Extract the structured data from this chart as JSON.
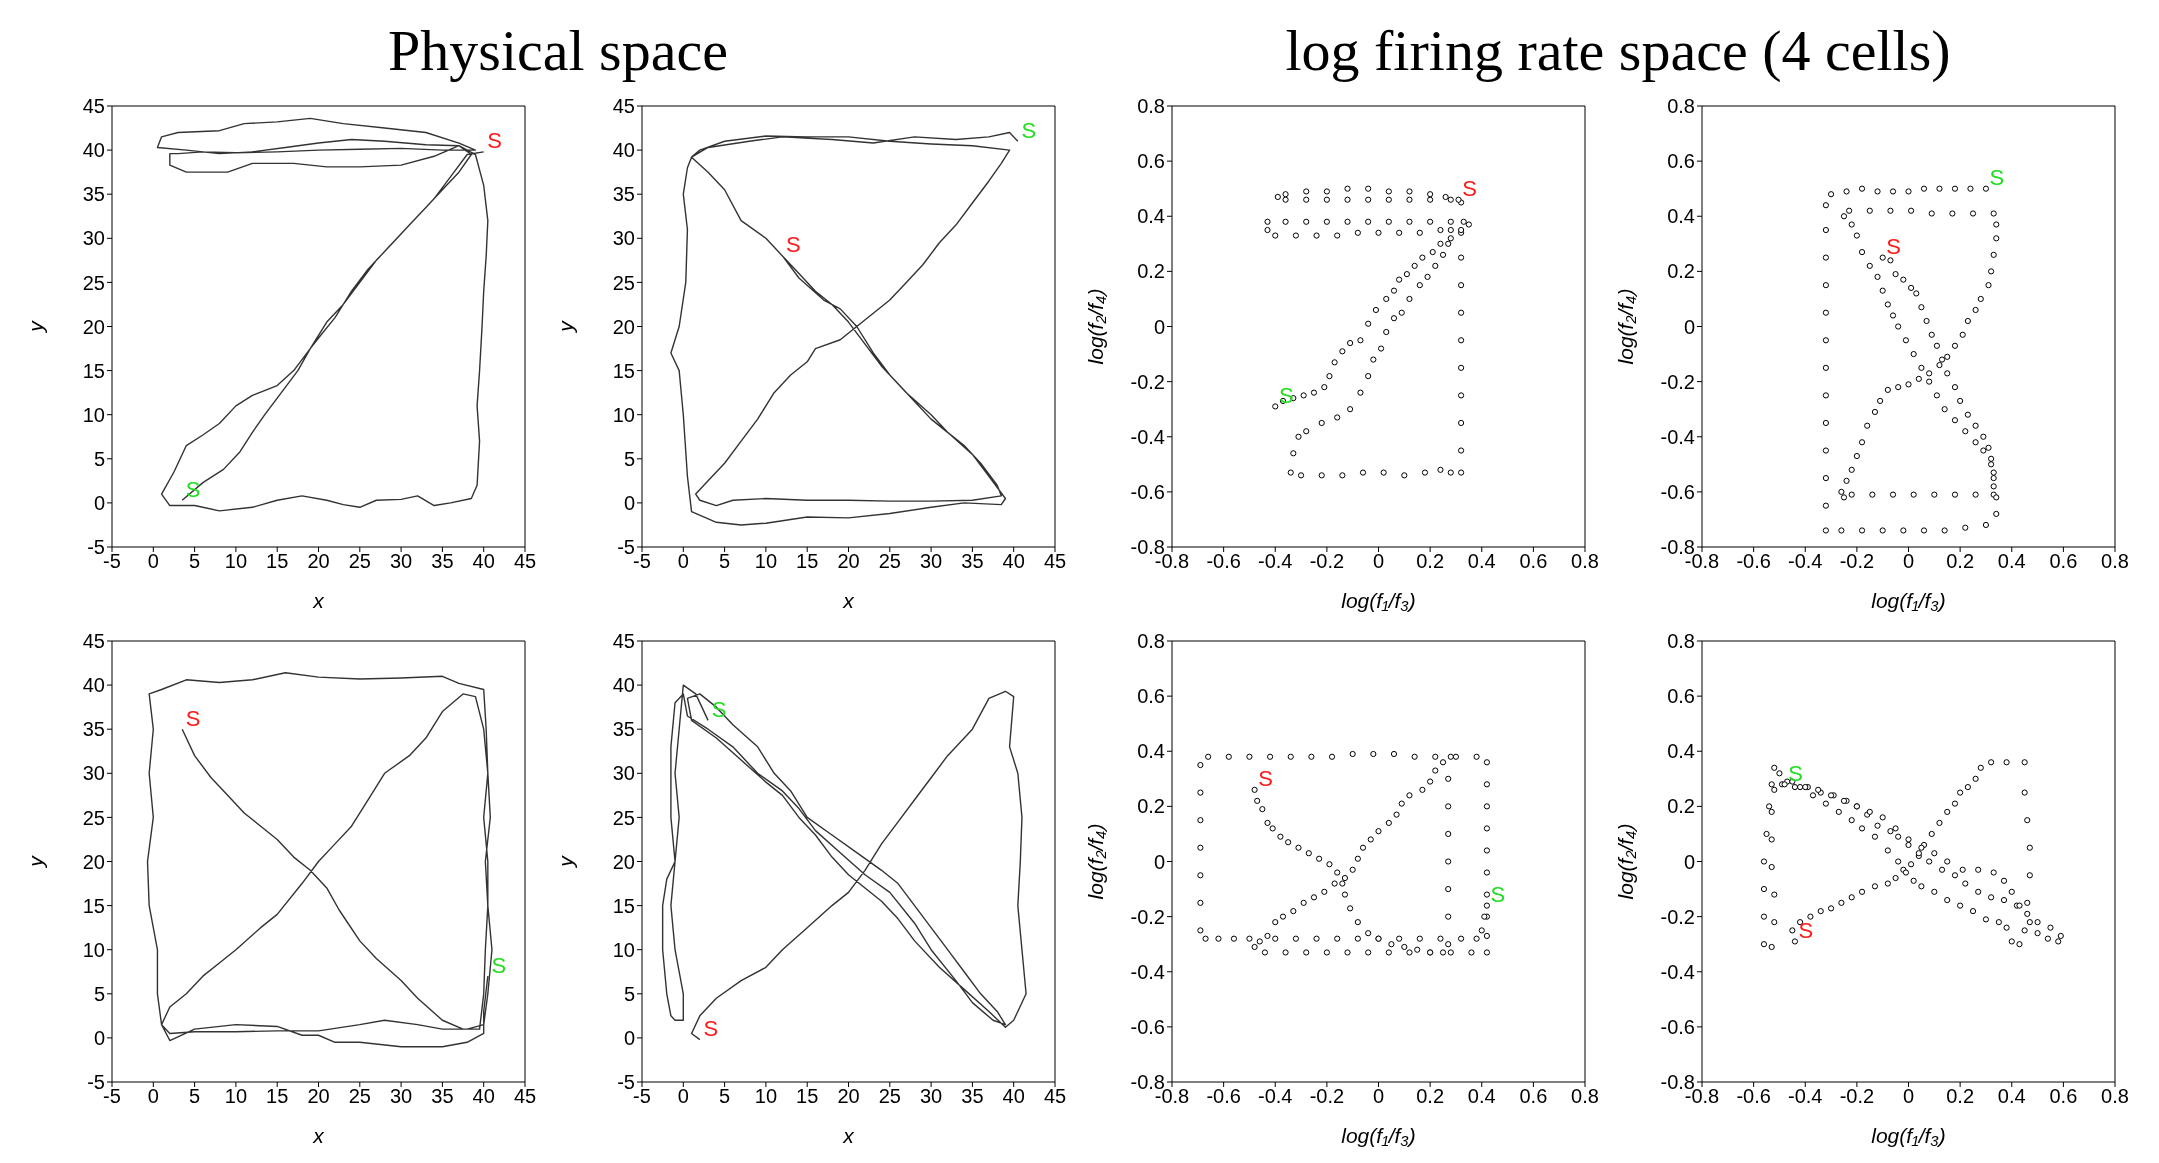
{
  "chart_data": [
    {
      "type": "line",
      "title": "Physical space",
      "xlabel": "x",
      "ylabel": "y",
      "color": "#333333",
      "xlim": [
        -5,
        45
      ],
      "ylim": [
        -5,
        45
      ],
      "xticks": [
        -5,
        0,
        5,
        10,
        15,
        20,
        25,
        30,
        35,
        40,
        45
      ],
      "yticks": [
        -5,
        0,
        5,
        10,
        15,
        20,
        25,
        30,
        35,
        40,
        45
      ],
      "annotations": [
        {
          "text": "S",
          "x": 40,
          "y": 39.8
        },
        {
          "text": "S",
          "x": 3.5,
          "y": 0.3
        }
      ],
      "x": [
        3.5,
        6,
        8.5,
        10.5,
        12,
        13.5,
        15.5,
        17.5,
        19,
        21,
        23,
        25,
        27,
        29,
        31,
        33,
        35,
        37,
        38.5,
        37,
        33,
        28,
        24,
        20,
        16,
        12,
        8,
        4,
        0.5,
        1,
        3,
        8,
        11,
        15,
        19,
        23,
        28,
        33,
        37,
        39,
        35,
        30,
        25,
        20,
        15,
        10,
        6,
        3,
        2,
        2,
        4,
        9,
        12,
        17,
        21,
        25,
        30,
        34,
        37,
        39,
        40,
        40.5,
        40.3,
        40,
        39.8,
        39.5,
        39.2,
        39.5,
        39.2,
        38.5,
        36,
        34,
        32,
        30,
        27,
        25,
        23,
        21,
        18,
        15,
        12,
        8,
        5,
        2,
        1,
        2.5,
        4,
        6,
        8,
        10,
        12,
        15,
        17,
        19,
        20,
        22,
        24,
        26,
        28,
        31,
        34,
        36,
        38,
        40
      ],
      "values": [
        0.3,
        2.3,
        3.8,
        5.8,
        8,
        10,
        12.5,
        15,
        17.5,
        20.5,
        22.5,
        25,
        27.5,
        29.5,
        31.5,
        33.5,
        35.5,
        37.5,
        39.5,
        40.5,
        40.6,
        41,
        41.2,
        40.8,
        40.3,
        39.8,
        39.6,
        40,
        40.3,
        41.5,
        42,
        42.2,
        43,
        43.2,
        43.6,
        43,
        42.5,
        42,
        40.8,
        40,
        40,
        40.2,
        40.1,
        40,
        39.8,
        39.7,
        39.8,
        39.6,
        39.6,
        38.3,
        37.5,
        37.5,
        38.5,
        38.5,
        38.1,
        38.1,
        38.3,
        39.3,
        40.5,
        39.5,
        36,
        32,
        28,
        24,
        20,
        15,
        11,
        7,
        2,
        0.5,
        0,
        -0.3,
        0.8,
        0.4,
        0.3,
        -0.5,
        -0.2,
        0.3,
        0.8,
        0.3,
        -0.5,
        -0.9,
        -0.3,
        -0.3,
        1,
        3.5,
        6.5,
        7.7,
        9,
        11,
        12.2,
        13.3,
        15,
        17.5,
        18.7,
        21,
        24,
        26.5,
        28.5,
        31.5,
        34.5,
        37,
        39.5,
        39.8
      ]
    },
    {
      "type": "line",
      "xlabel": "x",
      "ylabel": "y",
      "color": "#333333",
      "xlim": [
        -5,
        45
      ],
      "ylim": [
        -5,
        45
      ],
      "xticks": [
        -5,
        0,
        5,
        10,
        15,
        20,
        25,
        30,
        35,
        40,
        45
      ],
      "yticks": [
        -5,
        0,
        5,
        10,
        15,
        20,
        25,
        30,
        35,
        40,
        45
      ],
      "annotations": [
        {
          "text": "S",
          "x": 12,
          "y": 28
        },
        {
          "text": "S",
          "x": 40.5,
          "y": 41
        }
      ],
      "x": [
        12,
        14,
        16,
        18,
        20,
        22,
        24,
        26,
        28,
        30,
        32,
        34,
        36,
        38,
        38.5,
        35,
        30,
        25,
        20,
        15,
        10,
        6,
        4,
        2,
        1.5,
        3,
        5,
        7,
        9,
        11,
        13,
        15,
        16,
        19,
        21,
        23,
        25,
        27,
        29,
        31,
        33,
        35,
        37,
        38.5,
        39.5,
        35,
        30,
        25,
        20,
        15,
        10,
        5,
        2,
        1,
        3,
        5,
        7,
        10,
        12,
        14,
        17,
        19,
        21,
        23,
        25,
        27,
        30,
        32,
        35,
        37,
        39,
        38.5,
        34,
        30,
        25,
        20,
        15,
        10,
        7,
        4,
        1,
        0.5,
        0,
        -0.5,
        -1.5,
        -0.5,
        0.3,
        0.5,
        0,
        0.5,
        1,
        3,
        8,
        12,
        18,
        23,
        28,
        33,
        37,
        39.5,
        40.5
      ],
      "values": [
        28,
        26,
        24,
        22.5,
        20.5,
        18,
        15.5,
        13.5,
        11.5,
        9.5,
        8,
        6.5,
        4.5,
        2,
        0.8,
        0.3,
        0.2,
        0.2,
        0.3,
        0.3,
        0.5,
        0.3,
        -0.3,
        0.3,
        1,
        2.5,
        4.5,
        7,
        9.5,
        12.5,
        14.5,
        16,
        17.5,
        18.5,
        20,
        21.5,
        23,
        25,
        27,
        29.5,
        31.5,
        34,
        36.5,
        38.5,
        40,
        40.5,
        40.7,
        41,
        41.5,
        41.5,
        41.6,
        41,
        40,
        39.2,
        37.5,
        35.5,
        32,
        30,
        28,
        25.5,
        23,
        22,
        20,
        17,
        14.5,
        12.5,
        10,
        8,
        5.5,
        3,
        0.5,
        -0.2,
        0,
        -0.5,
        -1.2,
        -1.7,
        -1.6,
        -2.3,
        -2.5,
        -2.2,
        -1,
        3,
        10,
        15,
        17,
        20,
        25,
        31,
        35,
        38,
        39.2,
        40.3,
        41,
        41.5,
        41.2,
        40.8,
        41.5,
        41.2,
        41.5,
        42,
        41
      ]
    },
    {
      "type": "scatter",
      "title": "log firing rate space (4 cells)",
      "xlabel": "log(f₁/f₃)",
      "ylabel": "log(f₂/f₄)",
      "color": "#000000",
      "marker": "circle",
      "xlim": [
        -0.8,
        0.8
      ],
      "ylim": [
        -0.8,
        0.8
      ],
      "xticks": [
        -0.8,
        -0.6,
        -0.4,
        -0.2,
        0,
        0.2,
        0.4,
        0.6,
        0.8
      ],
      "yticks": [
        -0.8,
        -0.6,
        -0.4,
        -0.2,
        0,
        0.2,
        0.4,
        0.6,
        0.8
      ],
      "annotations": [
        {
          "text": "S",
          "x": 0.31,
          "y": 0.46
        },
        {
          "text": "S",
          "x": -0.4,
          "y": -0.29
        }
      ],
      "x": [
        -0.4,
        -0.37,
        -0.33,
        -0.29,
        -0.25,
        -0.21,
        -0.19,
        -0.17,
        -0.14,
        -0.11,
        -0.07,
        -0.04,
        -0.01,
        0.03,
        0.06,
        0.08,
        0.11,
        0.14,
        0.17,
        0.21,
        0.24,
        0.28,
        0.32,
        0.35,
        0.33,
        0.28,
        0.2,
        0.12,
        0.04,
        -0.04,
        -0.12,
        -0.2,
        -0.28,
        -0.36,
        -0.43,
        -0.43,
        -0.4,
        -0.32,
        -0.24,
        -0.16,
        -0.08,
        0,
        0.08,
        0.16,
        0.24,
        0.28,
        0.27,
        0.25,
        0.22,
        0.19,
        0.16,
        0.12,
        0.09,
        0.06,
        0.03,
        0.01,
        -0.02,
        -0.04,
        -0.07,
        -0.11,
        -0.16,
        -0.22,
        -0.28,
        -0.31,
        -0.33,
        -0.34,
        -0.3,
        -0.22,
        -0.14,
        -0.06,
        0.02,
        0.1,
        0.18,
        0.24,
        0.28,
        0.32,
        0.32,
        0.32,
        0.32,
        0.32,
        0.32,
        0.32,
        0.32,
        0.32,
        0.32,
        0.32,
        0.28,
        0.2,
        0.12,
        0.04,
        -0.04,
        -0.12,
        -0.2,
        -0.28,
        -0.36,
        -0.39,
        -0.36,
        -0.28,
        -0.2,
        -0.12,
        -0.04,
        0.04,
        0.12,
        0.2,
        0.26,
        0.31
      ],
      "values": [
        -0.29,
        -0.27,
        -0.26,
        -0.25,
        -0.24,
        -0.22,
        -0.18,
        -0.13,
        -0.09,
        -0.06,
        -0.05,
        0.01,
        0.06,
        0.1,
        0.13,
        0.17,
        0.19,
        0.22,
        0.25,
        0.27,
        0.3,
        0.32,
        0.34,
        0.37,
        0.38,
        0.38,
        0.38,
        0.38,
        0.38,
        0.38,
        0.38,
        0.38,
        0.38,
        0.38,
        0.38,
        0.35,
        0.33,
        0.33,
        0.33,
        0.33,
        0.34,
        0.34,
        0.34,
        0.34,
        0.35,
        0.35,
        0.3,
        0.26,
        0.22,
        0.18,
        0.15,
        0.1,
        0.05,
        0.03,
        -0.02,
        -0.08,
        -0.12,
        -0.18,
        -0.24,
        -0.3,
        -0.33,
        -0.35,
        -0.38,
        -0.4,
        -0.46,
        -0.53,
        -0.54,
        -0.54,
        -0.54,
        -0.53,
        -0.53,
        -0.54,
        -0.53,
        -0.52,
        -0.53,
        -0.53,
        -0.45,
        -0.35,
        -0.25,
        -0.15,
        -0.05,
        0.05,
        0.15,
        0.25,
        0.35,
        0.45,
        0.46,
        0.46,
        0.46,
        0.46,
        0.46,
        0.46,
        0.46,
        0.46,
        0.46,
        0.47,
        0.48,
        0.49,
        0.49,
        0.5,
        0.5,
        0.49,
        0.49,
        0.48,
        0.47,
        0.46
      ]
    },
    {
      "type": "scatter",
      "xlabel": "log(f₁/f₃)",
      "ylabel": "log(f₂/f₄)",
      "color": "#000000",
      "marker": "circle",
      "xlim": [
        -0.8,
        0.8
      ],
      "ylim": [
        -0.8,
        0.8
      ],
      "xticks": [
        -0.8,
        -0.6,
        -0.4,
        -0.2,
        0,
        0.2,
        0.4,
        0.6,
        0.8
      ],
      "yticks": [
        -0.8,
        -0.6,
        -0.4,
        -0.2,
        0,
        0.2,
        0.4,
        0.6,
        0.8
      ],
      "annotations": [
        {
          "text": "S",
          "x": -0.1,
          "y": 0.25
        },
        {
          "text": "S",
          "x": 0.3,
          "y": 0.5
        }
      ],
      "x": [
        -0.1,
        -0.07,
        -0.05,
        -0.02,
        0.01,
        0.03,
        0.05,
        0.07,
        0.09,
        0.11,
        0.13,
        0.15,
        0.18,
        0.2,
        0.23,
        0.26,
        0.29,
        0.31,
        0.32,
        0.33,
        0.33,
        0.33,
        0.26,
        0.18,
        0.1,
        0.02,
        -0.06,
        -0.14,
        -0.22,
        -0.25,
        -0.26,
        -0.24,
        -0.22,
        -0.2,
        -0.18,
        -0.16,
        -0.13,
        -0.11,
        -0.08,
        -0.04,
        0,
        0.04,
        0.08,
        0.12,
        0.15,
        0.18,
        0.21,
        0.23,
        0.26,
        0.28,
        0.31,
        0.32,
        0.33,
        0.34,
        0.34,
        0.33,
        0.25,
        0.17,
        0.09,
        0.01,
        -0.07,
        -0.15,
        -0.23,
        -0.25,
        -0.22,
        -0.2,
        -0.18,
        -0.15,
        -0.12,
        -0.1,
        -0.08,
        -0.06,
        -0.04,
        -0.01,
        0.02,
        0.05,
        0.08,
        0.11,
        0.14,
        0.18,
        0.22,
        0.26,
        0.29,
        0.32,
        0.33,
        0.34,
        0.34,
        0.3,
        0.22,
        0.14,
        0.06,
        -0.02,
        -0.1,
        -0.18,
        -0.26,
        -0.32,
        -0.32,
        -0.32,
        -0.32,
        -0.32,
        -0.32,
        -0.32,
        -0.32,
        -0.32,
        -0.32,
        -0.32,
        -0.32,
        -0.32,
        -0.3,
        -0.24,
        -0.18,
        -0.12,
        -0.06,
        0,
        0.06,
        0.12,
        0.18,
        0.24,
        0.3
      ],
      "values": [
        0.25,
        0.24,
        0.19,
        0.17,
        0.14,
        0.12,
        0.07,
        0.02,
        -0.03,
        -0.07,
        -0.12,
        -0.17,
        -0.22,
        -0.27,
        -0.32,
        -0.36,
        -0.4,
        -0.44,
        -0.48,
        -0.53,
        -0.58,
        -0.61,
        -0.61,
        -0.61,
        -0.61,
        -0.61,
        -0.61,
        -0.61,
        -0.61,
        -0.62,
        -0.6,
        -0.56,
        -0.52,
        -0.47,
        -0.42,
        -0.36,
        -0.31,
        -0.27,
        -0.23,
        -0.22,
        -0.21,
        -0.19,
        -0.17,
        -0.14,
        -0.11,
        -0.07,
        -0.03,
        0.02,
        0.06,
        0.1,
        0.15,
        0.2,
        0.26,
        0.32,
        0.37,
        0.41,
        0.41,
        0.41,
        0.41,
        0.42,
        0.42,
        0.42,
        0.42,
        0.4,
        0.37,
        0.33,
        0.27,
        0.22,
        0.18,
        0.13,
        0.08,
        0.04,
        0,
        -0.05,
        -0.1,
        -0.15,
        -0.2,
        -0.25,
        -0.3,
        -0.34,
        -0.38,
        -0.42,
        -0.45,
        -0.5,
        -0.55,
        -0.62,
        -0.68,
        -0.72,
        -0.73,
        -0.74,
        -0.74,
        -0.74,
        -0.74,
        -0.74,
        -0.74,
        -0.74,
        -0.65,
        -0.55,
        -0.45,
        -0.35,
        -0.25,
        -0.15,
        -0.05,
        0.05,
        0.15,
        0.25,
        0.35,
        0.44,
        0.48,
        0.49,
        0.5,
        0.49,
        0.49,
        0.49,
        0.5,
        0.5,
        0.5,
        0.5,
        0.5
      ]
    },
    {
      "type": "line",
      "xlabel": "x",
      "ylabel": "y",
      "color": "#333333",
      "xlim": [
        -5,
        45
      ],
      "ylim": [
        -5,
        45
      ],
      "xticks": [
        -5,
        0,
        5,
        10,
        15,
        20,
        25,
        30,
        35,
        40,
        45
      ],
      "yticks": [
        -5,
        0,
        5,
        10,
        15,
        20,
        25,
        30,
        35,
        40,
        45
      ],
      "annotations": [
        {
          "text": "S",
          "x": 3.5,
          "y": 35
        },
        {
          "text": "S",
          "x": 40.5,
          "y": 7
        }
      ],
      "x": [
        3.5,
        5,
        7,
        9,
        11,
        13,
        15,
        17,
        19,
        21,
        22.5,
        25,
        27,
        30,
        32,
        35,
        37.5,
        39.5,
        40,
        40.2,
        40.5,
        40.2,
        40.8,
        40.5,
        40,
        39,
        37.5,
        35,
        33,
        31,
        28,
        26,
        24,
        22,
        20,
        18,
        15,
        13,
        10,
        8,
        6,
        4,
        2,
        1,
        2,
        5,
        10,
        15,
        20,
        25,
        28,
        32,
        35,
        38,
        40,
        40.5,
        41,
        40.5,
        40.5,
        40,
        40.5,
        40.3,
        40,
        37,
        35,
        30,
        25,
        20,
        16,
        12,
        8,
        4,
        1,
        -0.5,
        0,
        -0.5,
        0,
        -0.7,
        -0.5,
        0.5,
        0.5,
        1,
        2,
        5,
        10,
        15,
        18,
        20,
        22,
        25,
        30,
        35,
        38,
        40,
        40,
        40.5
      ],
      "values": [
        35,
        32,
        29.5,
        27.5,
        25.5,
        24,
        22.5,
        20.5,
        19,
        17,
        14.5,
        11,
        9,
        6.5,
        4.5,
        2,
        1,
        1,
        5,
        10,
        15,
        20,
        25,
        30,
        35,
        38.7,
        39,
        37,
        34,
        32,
        30,
        27,
        24,
        22,
        20,
        17.5,
        14,
        12.5,
        10,
        8.5,
        7,
        5,
        3.5,
        1.5,
        0.5,
        0.7,
        0.7,
        0.8,
        0.8,
        1.5,
        2,
        1.5,
        1,
        1,
        1.5,
        5,
        10,
        15,
        20,
        25,
        30,
        35,
        39.5,
        40.2,
        41,
        40.8,
        40.7,
        40.9,
        41.4,
        40.6,
        40.3,
        40.6,
        39.5,
        39,
        35,
        30,
        25,
        20,
        15,
        10,
        5,
        1.5,
        -0.3,
        1,
        1.5,
        1.3,
        0.3,
        0.3,
        -0.5,
        -0.5,
        -1,
        -1,
        -0.5,
        0.5,
        3,
        7
      ]
    },
    {
      "type": "line",
      "xlabel": "x",
      "ylabel": "y",
      "color": "#333333",
      "xlim": [
        -5,
        45
      ],
      "ylim": [
        -5,
        45
      ],
      "xticks": [
        -5,
        0,
        5,
        10,
        15,
        20,
        25,
        30,
        35,
        40,
        45
      ],
      "yticks": [
        -5,
        0,
        5,
        10,
        15,
        20,
        25,
        30,
        35,
        40,
        45
      ],
      "annotations": [
        {
          "text": "S",
          "x": 2,
          "y": -0.2
        },
        {
          "text": "S",
          "x": 3,
          "y": 36
        }
      ],
      "x": [
        2,
        1,
        2,
        4,
        7,
        10,
        12,
        15,
        18,
        20,
        22,
        24,
        26,
        28,
        30,
        32,
        35,
        37,
        39,
        40,
        39.5,
        40.5,
        41,
        40.8,
        40.5,
        41,
        41.5,
        40,
        39,
        37,
        34,
        31,
        28,
        26,
        24,
        22,
        20,
        18,
        16,
        14,
        12,
        10,
        7,
        4,
        1,
        0.5,
        2,
        4,
        6,
        9,
        11,
        13,
        15,
        18,
        21,
        24,
        26,
        28,
        30,
        32,
        34,
        36,
        38,
        39,
        37.5,
        35,
        33,
        30,
        28,
        25,
        22,
        19,
        16,
        14,
        12,
        9,
        6,
        3,
        0.5,
        0,
        -1,
        -1.5,
        -1.5,
        -1,
        -2,
        -2.5,
        -2.5,
        -2,
        -1.5,
        -1,
        0,
        0,
        -1,
        -1.5,
        -1,
        -0.5,
        -1,
        -0.5,
        0,
        1.5,
        3
      ],
      "values": [
        -0.2,
        0.5,
        2.5,
        4.5,
        6.5,
        8,
        10,
        12.5,
        15,
        16.5,
        19,
        22,
        24.5,
        27,
        29.5,
        32,
        35,
        38.5,
        39.3,
        38.7,
        33,
        30,
        25,
        20,
        15,
        10,
        5,
        2,
        1.2,
        3,
        5.5,
        8,
        11,
        13.5,
        15.5,
        17,
        18.5,
        20.5,
        23,
        25,
        27.5,
        29,
        31.5,
        34,
        36,
        38.5,
        39,
        37.5,
        35.5,
        33,
        30,
        28,
        25,
        23,
        21,
        19,
        17.5,
        15,
        12.5,
        10,
        7.5,
        5,
        3,
        1.5,
        2,
        4,
        6.5,
        10,
        13,
        16.5,
        18.5,
        21,
        23.5,
        26,
        28,
        30,
        33,
        35,
        36.5,
        39,
        38,
        33,
        25,
        20,
        18,
        15,
        10,
        5,
        2.5,
        2,
        2,
        5,
        10,
        15,
        20,
        25,
        30,
        35,
        40,
        39,
        36
      ]
    },
    {
      "type": "scatter",
      "xlabel": "log(f₁/f₃)",
      "ylabel": "log(f₂/f₄)",
      "color": "#000000",
      "marker": "circle",
      "xlim": [
        -0.8,
        0.8
      ],
      "ylim": [
        -0.8,
        0.8
      ],
      "xticks": [
        -0.8,
        -0.6,
        -0.4,
        -0.2,
        0,
        0.2,
        0.4,
        0.6,
        0.8
      ],
      "yticks": [
        -0.8,
        -0.6,
        -0.4,
        -0.2,
        0,
        0.2,
        0.4,
        0.6,
        0.8
      ],
      "annotations": [
        {
          "text": "S",
          "x": -0.48,
          "y": 0.26
        },
        {
          "text": "S",
          "x": 0.42,
          "y": -0.16
        }
      ],
      "x": [
        -0.48,
        -0.47,
        -0.45,
        -0.43,
        -0.41,
        -0.38,
        -0.35,
        -0.31,
        -0.27,
        -0.23,
        -0.19,
        -0.16,
        -0.14,
        -0.13,
        -0.11,
        -0.08,
        -0.04,
        0,
        0.05,
        0.1,
        0.15,
        0.2,
        0.25,
        0.27,
        0.27,
        0.27,
        0.27,
        0.27,
        0.27,
        0.27,
        0.28,
        0.25,
        0.22,
        0.2,
        0.17,
        0.12,
        0.09,
        0.07,
        0.04,
        0,
        -0.03,
        -0.06,
        -0.08,
        -0.1,
        -0.13,
        -0.17,
        -0.21,
        -0.25,
        -0.29,
        -0.33,
        -0.37,
        -0.4,
        -0.43,
        -0.46,
        -0.5,
        -0.56,
        -0.62,
        -0.67,
        -0.69,
        -0.69,
        -0.69,
        -0.69,
        -0.69,
        -0.69,
        -0.69,
        -0.66,
        -0.58,
        -0.5,
        -0.42,
        -0.34,
        -0.26,
        -0.18,
        -0.1,
        -0.02,
        0.06,
        0.14,
        0.22,
        0.3,
        0.38,
        0.42,
        0.42,
        0.42,
        0.42,
        0.42,
        0.42,
        0.42,
        0.42,
        0.42,
        0.42,
        0.36,
        0.28,
        0.2,
        0.12,
        0.04,
        -0.04,
        -0.12,
        -0.2,
        -0.28,
        -0.36,
        -0.44,
        -0.48,
        -0.4,
        -0.32,
        -0.24,
        -0.16,
        -0.08,
        0,
        0.08,
        0.16,
        0.24,
        0.32,
        0.38,
        0.4,
        0.41,
        0.42
      ],
      "values": [
        0.26,
        0.22,
        0.19,
        0.14,
        0.12,
        0.09,
        0.07,
        0.05,
        0.03,
        0.01,
        -0.01,
        -0.04,
        -0.08,
        -0.12,
        -0.17,
        -0.22,
        -0.26,
        -0.28,
        -0.3,
        -0.31,
        -0.32,
        -0.33,
        -0.33,
        -0.3,
        -0.2,
        -0.1,
        0,
        0.1,
        0.2,
        0.3,
        0.38,
        0.36,
        0.33,
        0.29,
        0.26,
        0.24,
        0.21,
        0.17,
        0.14,
        0.11,
        0.08,
        0.05,
        0.01,
        -0.03,
        -0.06,
        -0.08,
        -0.11,
        -0.13,
        -0.15,
        -0.18,
        -0.2,
        -0.22,
        -0.27,
        -0.29,
        -0.28,
        -0.28,
        -0.28,
        -0.28,
        -0.25,
        -0.15,
        -0.05,
        0.05,
        0.15,
        0.25,
        0.35,
        0.38,
        0.38,
        0.38,
        0.38,
        0.38,
        0.38,
        0.38,
        0.39,
        0.39,
        0.39,
        0.38,
        0.38,
        0.38,
        0.38,
        0.36,
        0.28,
        0.2,
        0.12,
        0.04,
        -0.04,
        -0.12,
        -0.2,
        -0.27,
        -0.33,
        -0.33,
        -0.33,
        -0.33,
        -0.33,
        -0.33,
        -0.33,
        -0.33,
        -0.33,
        -0.33,
        -0.33,
        -0.33,
        -0.31,
        -0.28,
        -0.28,
        -0.28,
        -0.28,
        -0.28,
        -0.28,
        -0.28,
        -0.28,
        -0.28,
        -0.28,
        -0.28,
        -0.25,
        -0.2,
        -0.16
      ]
    },
    {
      "type": "scatter",
      "xlabel": "log(f₁/f₃)",
      "ylabel": "log(f₂/f₄)",
      "color": "#000000",
      "marker": "circle",
      "xlim": [
        -0.8,
        0.8
      ],
      "ylim": [
        -0.8,
        0.8
      ],
      "xticks": [
        -0.8,
        -0.6,
        -0.4,
        -0.2,
        0,
        0.2,
        0.4,
        0.6,
        0.8
      ],
      "yticks": [
        -0.8,
        -0.6,
        -0.4,
        -0.2,
        0,
        0.2,
        0.4,
        0.6,
        0.8
      ],
      "annotations": [
        {
          "text": "S",
          "x": -0.44,
          "y": -0.29
        },
        {
          "text": "S",
          "x": -0.48,
          "y": 0.28
        }
      ],
      "x": [
        -0.44,
        -0.45,
        -0.42,
        -0.38,
        -0.34,
        -0.3,
        -0.26,
        -0.22,
        -0.18,
        -0.13,
        -0.08,
        -0.05,
        -0.02,
        0.01,
        0.04,
        0.06,
        0.09,
        0.12,
        0.15,
        0.18,
        0.2,
        0.23,
        0.26,
        0.28,
        0.32,
        0.38,
        0.45,
        0.45,
        0.46,
        0.47,
        0.47,
        0.46,
        0.45,
        0.43,
        0.4,
        0.38,
        0.35,
        0.3,
        0.25,
        0.2,
        0.15,
        0.1,
        0.05,
        0.02,
        -0.01,
        -0.04,
        -0.08,
        -0.13,
        -0.18,
        -0.22,
        -0.27,
        -0.32,
        -0.37,
        -0.42,
        -0.47,
        -0.5,
        -0.52,
        -0.53,
        -0.54,
        -0.55,
        -0.56,
        -0.56,
        -0.56,
        -0.56,
        -0.53,
        -0.52,
        -0.52,
        -0.53,
        -0.53,
        -0.53,
        -0.52,
        -0.49,
        -0.44,
        -0.39,
        -0.34,
        -0.29,
        -0.24,
        -0.2,
        -0.16,
        -0.12,
        -0.07,
        -0.04,
        0,
        0.04,
        0.08,
        0.13,
        0.18,
        0.22,
        0.27,
        0.32,
        0.37,
        0.42,
        0.46,
        0.5,
        0.55,
        0.59,
        0.58,
        0.54,
        0.5,
        0.47,
        0.43,
        0.4,
        0.37,
        0.33,
        0.27,
        0.21,
        0.15,
        0.1,
        0.05,
        0,
        -0.05,
        -0.1,
        -0.15,
        -0.2,
        -0.25,
        -0.3,
        -0.35,
        -0.4,
        -0.45,
        -0.48
      ],
      "values": [
        -0.29,
        -0.25,
        -0.22,
        -0.2,
        -0.18,
        -0.17,
        -0.15,
        -0.13,
        -0.11,
        -0.09,
        -0.08,
        -0.06,
        -0.03,
        -0.01,
        0.02,
        0.06,
        0.1,
        0.14,
        0.18,
        0.21,
        0.25,
        0.27,
        0.3,
        0.34,
        0.36,
        0.36,
        0.36,
        0.25,
        0.15,
        0.05,
        -0.05,
        -0.15,
        -0.25,
        -0.3,
        -0.29,
        -0.24,
        -0.22,
        -0.21,
        -0.18,
        -0.16,
        -0.14,
        -0.11,
        -0.09,
        -0.07,
        -0.04,
        0,
        0.04,
        0.09,
        0.12,
        0.15,
        0.18,
        0.21,
        0.24,
        0.27,
        0.29,
        0.32,
        0.34,
        0.28,
        0.2,
        0.1,
        0,
        -0.1,
        -0.2,
        -0.3,
        -0.31,
        -0.22,
        -0.12,
        -0.02,
        0.08,
        0.18,
        0.26,
        0.28,
        0.27,
        0.27,
        0.25,
        0.24,
        0.22,
        0.2,
        0.17,
        0.13,
        0.11,
        0.09,
        0.06,
        0.03,
        0,
        -0.03,
        -0.05,
        -0.08,
        -0.11,
        -0.13,
        -0.14,
        -0.16,
        -0.19,
        -0.22,
        -0.24,
        -0.27,
        -0.29,
        -0.28,
        -0.26,
        -0.22,
        -0.16,
        -0.11,
        -0.07,
        -0.04,
        -0.03,
        -0.03,
        0,
        0.03,
        0.05,
        0.08,
        0.12,
        0.16,
        0.18,
        0.2,
        0.22,
        0.24,
        0.26,
        0.27,
        0.29,
        0.28
      ]
    }
  ]
}
